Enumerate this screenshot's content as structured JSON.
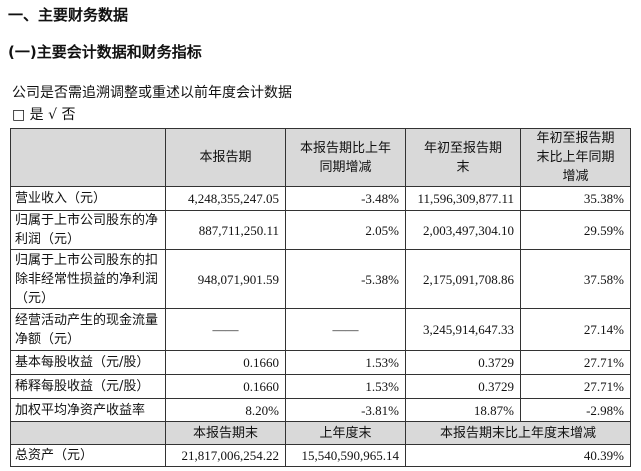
{
  "heading": "一、主要财务数据",
  "subheading": "(一)主要会计数据和财务指标",
  "question": "公司是否需追溯调整或重述以前年度会计数据",
  "choice": "□ 是 √ 否",
  "table": {
    "header": [
      "本报告期",
      "本报告期比上年同期增减",
      "年初至报告期末",
      "年初至报告期末比上年同期增减"
    ],
    "rows": [
      [
        "营业收入（元）",
        "4,248,355,247.05",
        "-3.48%",
        "11,596,309,877.11",
        "35.38%"
      ],
      [
        "归属于上市公司股东的净利润（元）",
        "887,711,250.11",
        "2.05%",
        "2,003,497,304.10",
        "29.59%"
      ],
      [
        "归属于上市公司股东的扣除非经常性损益的净利润（元）",
        "948,071,901.59",
        "-5.38%",
        "2,175,091,708.86",
        "37.58%"
      ],
      [
        "经营活动产生的现金流量净额（元）",
        "——",
        "——",
        "3,245,914,647.33",
        "27.14%"
      ],
      [
        "基本每股收益（元/股）",
        "0.1660",
        "1.53%",
        "0.3729",
        "27.71%"
      ],
      [
        "稀释每股收益（元/股）",
        "0.1660",
        "1.53%",
        "0.3729",
        "27.71%"
      ],
      [
        "加权平均净资产收益率",
        "8.20%",
        "-3.81%",
        "18.87%",
        "-2.98%"
      ]
    ],
    "header2": [
      "本报告期末",
      "上年度末",
      "本报告期末比上年度末增减"
    ],
    "rows2": [
      [
        "总资产（元）",
        "21,817,006,254.22",
        "15,540,590,965.14",
        "40.39%"
      ]
    ]
  }
}
